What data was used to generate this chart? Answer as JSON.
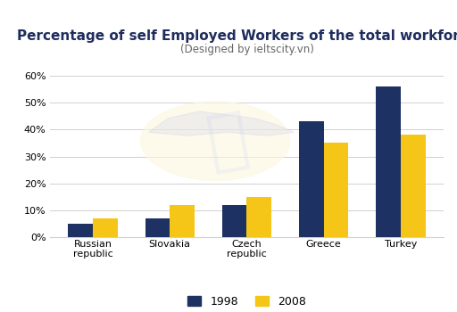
{
  "title": "Percentage of self Employed Workers of the total workforce",
  "subtitle": "(Designed by ieltscity.vn)",
  "categories": [
    "Russian\nrepublic",
    "Slovakia",
    "Czech\nrepublic",
    "Greece",
    "Turkey"
  ],
  "values_1998": [
    5,
    7,
    12,
    43,
    56
  ],
  "values_2008": [
    7,
    12,
    15,
    35,
    38
  ],
  "color_1998": "#1e3163",
  "color_2008": "#f5c518",
  "ylim": [
    0,
    65
  ],
  "yticks": [
    0,
    10,
    20,
    30,
    40,
    50,
    60
  ],
  "ytick_labels": [
    "0%",
    "10%",
    "20%",
    "30%",
    "40%",
    "50%",
    "60%"
  ],
  "legend_labels": [
    "1998",
    "2008"
  ],
  "background_color": "#ffffff",
  "grid_color": "#d0d0d0",
  "title_fontsize": 11,
  "subtitle_fontsize": 8.5,
  "tick_fontsize": 8,
  "legend_fontsize": 9,
  "bar_width": 0.32
}
